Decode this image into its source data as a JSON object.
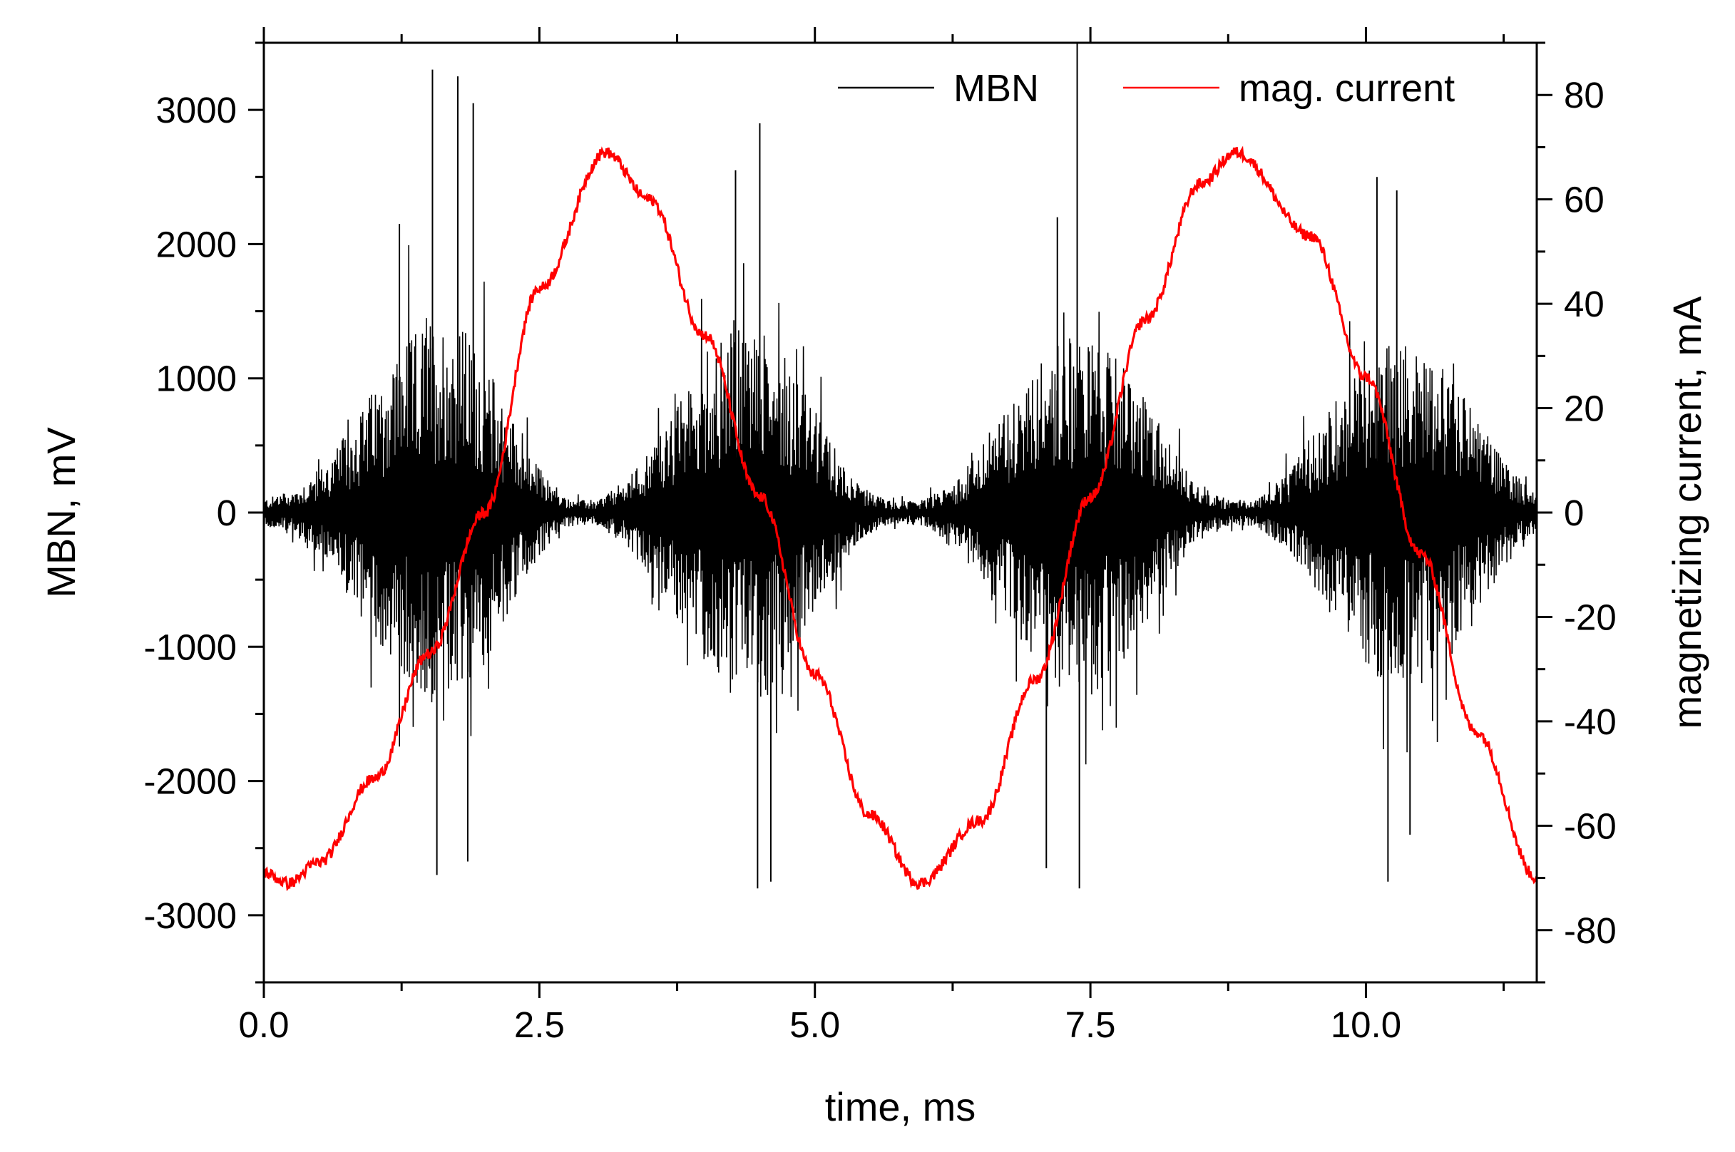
{
  "chart_data": {
    "type": "line",
    "xlabel": "time, ms",
    "ylabel_left": "MBN, mV",
    "ylabel_right": "magnetizing current, mA",
    "xlim": [
      0,
      11.55
    ],
    "ylim_left": [
      -3500,
      3500
    ],
    "ylim_right": [
      -90,
      90
    ],
    "x_ticks": [
      0.0,
      2.5,
      5.0,
      7.5,
      10.0
    ],
    "x_tick_labels": [
      "0.0",
      "2.5",
      "5.0",
      "7.5",
      "10.0"
    ],
    "y_left_ticks": [
      -3000,
      -2000,
      -1000,
      0,
      1000,
      2000,
      3000
    ],
    "y_left_tick_labels": [
      "-3000",
      "-2000",
      "-1000",
      "0",
      "1000",
      "2000",
      "3000"
    ],
    "y_right_ticks": [
      -80,
      -60,
      -40,
      -20,
      0,
      20,
      40,
      60,
      80
    ],
    "y_right_tick_labels": [
      "-80",
      "-60",
      "-40",
      "-20",
      "0",
      "20",
      "40",
      "60",
      "80"
    ],
    "legend_position": "top-right",
    "grid": false,
    "series": [
      {
        "name": "MBN",
        "axis": "left",
        "color": "#000000",
        "style": "noise bursts",
        "envelope": {
          "x": [
            0.0,
            0.3,
            0.6,
            0.9,
            1.2,
            1.5,
            1.8,
            2.1,
            2.4,
            2.7,
            3.0,
            3.3,
            3.6,
            3.9,
            4.2,
            4.5,
            4.8,
            5.1,
            5.4,
            5.7,
            6.0,
            6.3,
            6.6,
            6.9,
            7.2,
            7.5,
            7.8,
            8.1,
            8.4,
            8.7,
            9.0,
            9.3,
            9.6,
            9.9,
            10.2,
            10.5,
            10.8,
            11.1,
            11.4,
            11.55
          ],
          "y": [
            100,
            180,
            400,
            800,
            1200,
            1450,
            1400,
            1000,
            450,
            120,
            80,
            250,
            600,
            1000,
            1350,
            1400,
            1100,
            600,
            200,
            80,
            100,
            250,
            600,
            1000,
            1300,
            1300,
            1100,
            700,
            280,
            100,
            100,
            300,
            700,
            1050,
            1300,
            1250,
            1000,
            600,
            250,
            150
          ]
        },
        "spikes": [
          {
            "x": 1.53,
            "y": 3300
          },
          {
            "x": 1.76,
            "y": 3250
          },
          {
            "x": 1.9,
            "y": 3050
          },
          {
            "x": 1.57,
            "y": -2700
          },
          {
            "x": 1.85,
            "y": -2600
          },
          {
            "x": 1.23,
            "y": 2150
          },
          {
            "x": 4.5,
            "y": 2900
          },
          {
            "x": 4.28,
            "y": 2550
          },
          {
            "x": 4.48,
            "y": -2800
          },
          {
            "x": 4.6,
            "y": -2750
          },
          {
            "x": 7.2,
            "y": 2200
          },
          {
            "x": 7.38,
            "y": 3500
          },
          {
            "x": 7.4,
            "y": -2800
          },
          {
            "x": 7.1,
            "y": -2650
          },
          {
            "x": 10.1,
            "y": 2500
          },
          {
            "x": 10.28,
            "y": 2400
          },
          {
            "x": 10.2,
            "y": -2750
          },
          {
            "x": 10.4,
            "y": -2400
          }
        ]
      },
      {
        "name": "mag. current",
        "axis": "right",
        "color": "#ff0000",
        "x": [
          0.0,
          0.22,
          0.5,
          1.0,
          1.5,
          2.0,
          2.5,
          3.1,
          3.5,
          4.0,
          4.5,
          5.0,
          5.5,
          5.95,
          6.5,
          7.0,
          7.5,
          8.0,
          8.5,
          8.82,
          9.5,
          10.0,
          10.5,
          11.0,
          11.55
        ],
        "y": [
          -69,
          -71,
          -67,
          -51,
          -27,
          0,
          43,
          69,
          60,
          34,
          3,
          -31,
          -58,
          -71,
          -59,
          -32,
          3,
          37,
          63,
          69,
          53,
          26,
          -8,
          -42,
          -70
        ]
      }
    ]
  }
}
